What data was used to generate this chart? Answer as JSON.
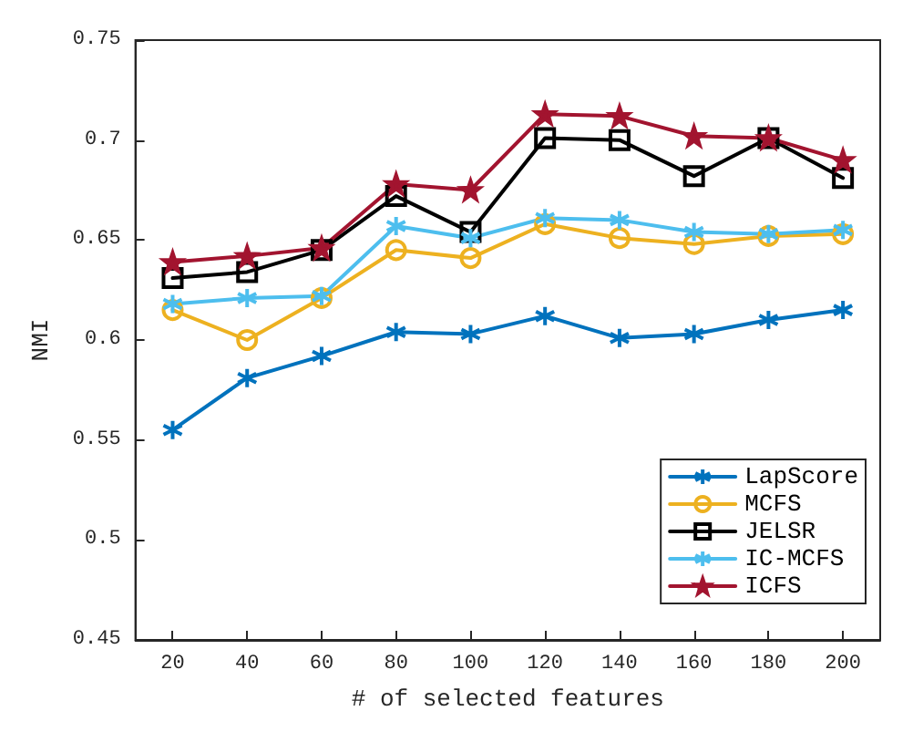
{
  "chart_data": {
    "type": "line",
    "xlabel": "# of selected features",
    "ylabel": "NMI",
    "x": [
      20,
      40,
      60,
      80,
      100,
      120,
      140,
      160,
      180,
      200
    ],
    "series": [
      {
        "name": "LapScore",
        "color": "#0072bd",
        "marker": "cross",
        "values": [
          0.555,
          0.581,
          0.592,
          0.604,
          0.603,
          0.612,
          0.601,
          0.603,
          0.61,
          0.615
        ]
      },
      {
        "name": "MCFS",
        "color": "#edb120",
        "marker": "circle",
        "values": [
          0.615,
          0.6,
          0.621,
          0.645,
          0.641,
          0.658,
          0.651,
          0.648,
          0.652,
          0.653
        ]
      },
      {
        "name": "JELSR",
        "color": "#000000",
        "marker": "square",
        "values": [
          0.631,
          0.634,
          0.645,
          0.672,
          0.654,
          0.701,
          0.7,
          0.682,
          0.701,
          0.681
        ]
      },
      {
        "name": "IC-MCFS",
        "color": "#4dbeee",
        "marker": "cross",
        "values": [
          0.618,
          0.621,
          0.622,
          0.657,
          0.651,
          0.661,
          0.66,
          0.654,
          0.653,
          0.655
        ]
      },
      {
        "name": "ICFS",
        "color": "#a2142f",
        "marker": "star",
        "values": [
          0.639,
          0.642,
          0.646,
          0.678,
          0.675,
          0.713,
          0.712,
          0.702,
          0.701,
          0.69
        ]
      }
    ],
    "xlim": [
      10,
      210
    ],
    "xticks": [
      20,
      40,
      60,
      80,
      100,
      120,
      140,
      160,
      180,
      200
    ],
    "ylim": [
      0.45,
      0.75
    ],
    "yticks": [
      0.45,
      0.5,
      0.55,
      0.6,
      0.65,
      0.7,
      0.75
    ],
    "grid": false,
    "legend": "bottom right",
    "line_style": "solid"
  }
}
